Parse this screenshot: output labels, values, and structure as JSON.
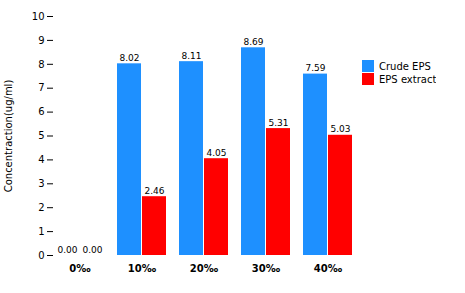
{
  "chart_data": {
    "type": "bar",
    "categories": [
      "0‰",
      "10‰",
      "20‰",
      "30‰",
      "40‰"
    ],
    "series": [
      {
        "name": "Crude EPS",
        "color": "#1E90FF",
        "values": [
          0,
          8.02,
          8.11,
          8.69,
          7.59
        ],
        "value_labels": [
          "0.00",
          "8.02",
          "8.11",
          "8.69",
          "7.59"
        ]
      },
      {
        "name": "EPS extract",
        "color": "#FF0000",
        "values": [
          0,
          2.46,
          4.05,
          5.31,
          5.03
        ],
        "value_labels": [
          "0.00",
          "2.46",
          "4.05",
          "5.31",
          "5.03"
        ]
      }
    ],
    "ylabel": "Concentraction(ug/ml)",
    "ylim": [
      0,
      10
    ],
    "yticks": [
      0,
      1,
      2,
      3,
      4,
      5,
      6,
      7,
      8,
      9,
      10
    ],
    "data_labels": true,
    "legend": "right",
    "grid": false
  }
}
